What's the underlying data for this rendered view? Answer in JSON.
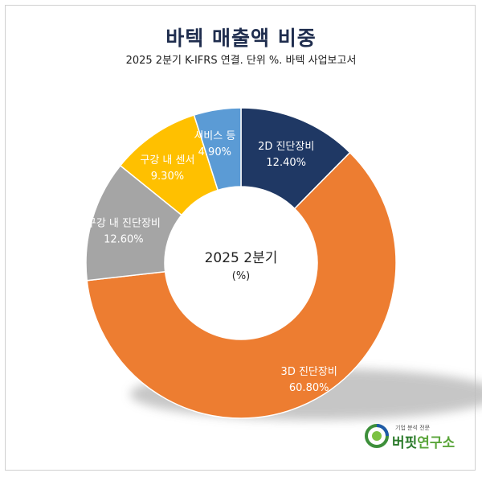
{
  "chart_data": {
    "type": "pie",
    "variant": "donut",
    "title": "바텍 매출액 비중",
    "subtitle": "2025 2분기 K-IFRS 연결. 단위 %. 바텍 사업보고서",
    "center_label": "2025 2분기",
    "center_sublabel": "(%)",
    "slices": [
      {
        "label": "2D 진단장비",
        "value": 12.4,
        "display": "12.40%",
        "color": "#1f3864"
      },
      {
        "label": "3D 진단장비",
        "value": 60.8,
        "display": "60.80%",
        "color": "#ed7d31"
      },
      {
        "label": "구강 내 진단장비",
        "value": 12.6,
        "display": "12.60%",
        "color": "#a5a5a5"
      },
      {
        "label": "구강 내 센서",
        "value": 9.3,
        "display": "9.30%",
        "color": "#ffc000"
      },
      {
        "label": "서비스 등",
        "value": 4.9,
        "display": "4.90%",
        "color": "#5b9bd5"
      }
    ]
  },
  "logo": {
    "tagline": "기업 분석 전문",
    "name_part1": "버핏",
    "name_part2": "연구소"
  }
}
